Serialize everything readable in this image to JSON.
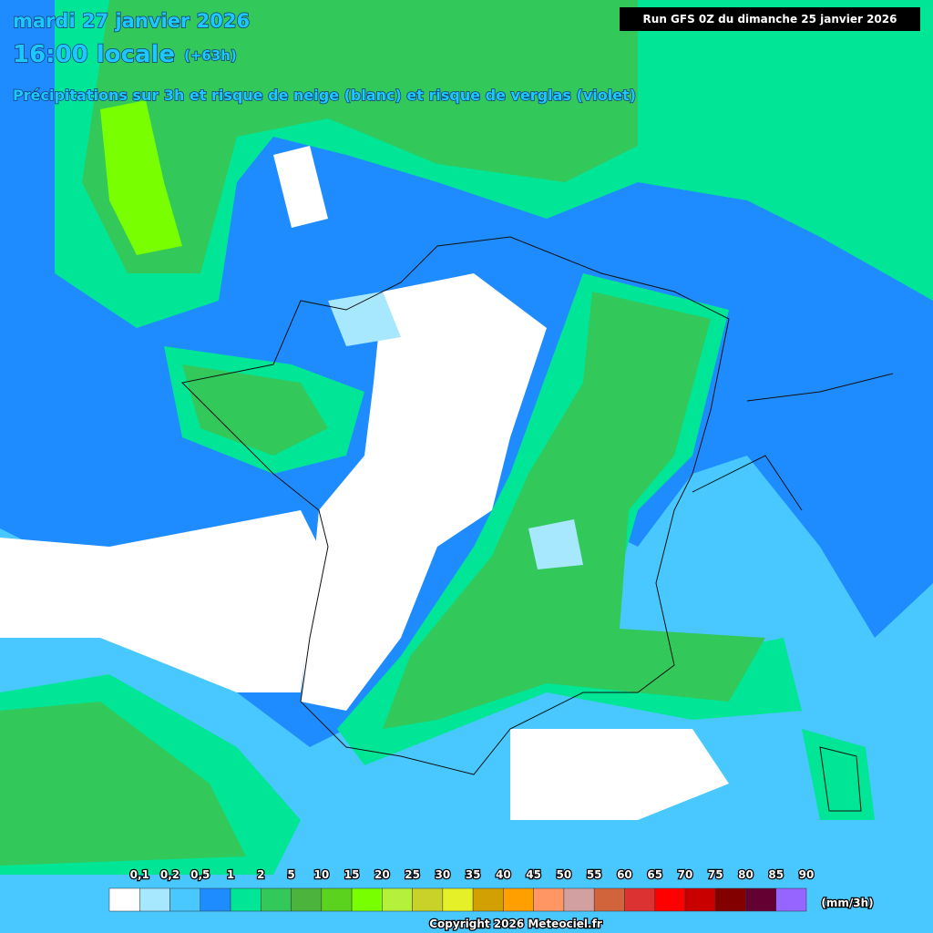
{
  "header": {
    "date": "mardi 27 janvier 2026",
    "time": "16:00 locale",
    "lead": "(+63h)",
    "subtitle": "Précipitations sur 3h et risque de neige (blanc) et risque de verglas (violet)",
    "run": "Run GFS 0Z du dimanche 25 janvier 2026"
  },
  "legend": {
    "labels": [
      "0,1",
      "0,2",
      "0,5",
      "1",
      "2",
      "5",
      "10",
      "15",
      "20",
      "25",
      "30",
      "35",
      "40",
      "45",
      "50",
      "55",
      "60",
      "65",
      "70",
      "75",
      "80",
      "85",
      "90"
    ],
    "colors": [
      "#ffffff",
      "#a8e8ff",
      "#48c8ff",
      "#1e8cff",
      "#00e696",
      "#32c85a",
      "#4cb43c",
      "#5ad21e",
      "#78ff00",
      "#b4f03c",
      "#c8d228",
      "#e6f028",
      "#d2a000",
      "#ffa000",
      "#ff9664",
      "#d2a0a0",
      "#d2643c",
      "#dc3232",
      "#ff0000",
      "#c80000",
      "#820000",
      "#640032",
      "#9664ff",
      "#ff64ff"
    ],
    "unit": "(mm/3h)"
  },
  "footer": {
    "copyright": "Copyright 2026 Meteociel.fr"
  }
}
